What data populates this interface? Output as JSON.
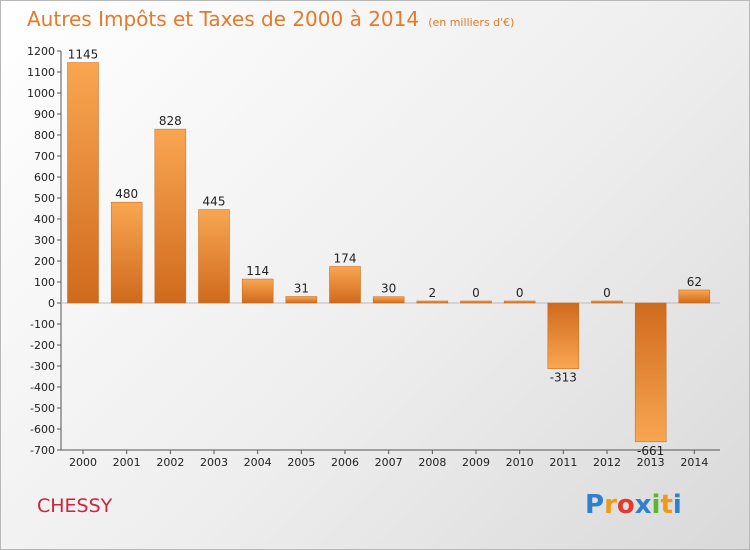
{
  "chart_data": {
    "type": "bar",
    "title": "Autres Impôts et Taxes de 2000 à 2014",
    "subtitle": "(en milliers d'€)",
    "categories": [
      "2000",
      "2001",
      "2002",
      "2003",
      "2004",
      "2005",
      "2006",
      "2007",
      "2008",
      "2009",
      "2010",
      "2011",
      "2012",
      "2013",
      "2014"
    ],
    "values": [
      1145,
      480,
      828,
      445,
      114,
      31,
      174,
      30,
      2,
      0,
      0,
      -313,
      0,
      -661,
      62
    ],
    "ylim": [
      -700,
      1200
    ],
    "ytick_step": 100,
    "grid": false,
    "bar_color": "#e8782a"
  },
  "footer": {
    "commune": "CHESSY",
    "logo_letters": [
      {
        "ch": "P",
        "color": "#2f7fcf"
      },
      {
        "ch": "r",
        "color": "#f09a1a"
      },
      {
        "ch": "o",
        "color": "#e23b2e"
      },
      {
        "ch": "x",
        "color": "#2f7fcf"
      },
      {
        "ch": "i",
        "color": "#5ab532"
      },
      {
        "ch": "t",
        "color": "#f09a1a"
      },
      {
        "ch": "i",
        "color": "#2f7fcf"
      }
    ]
  }
}
